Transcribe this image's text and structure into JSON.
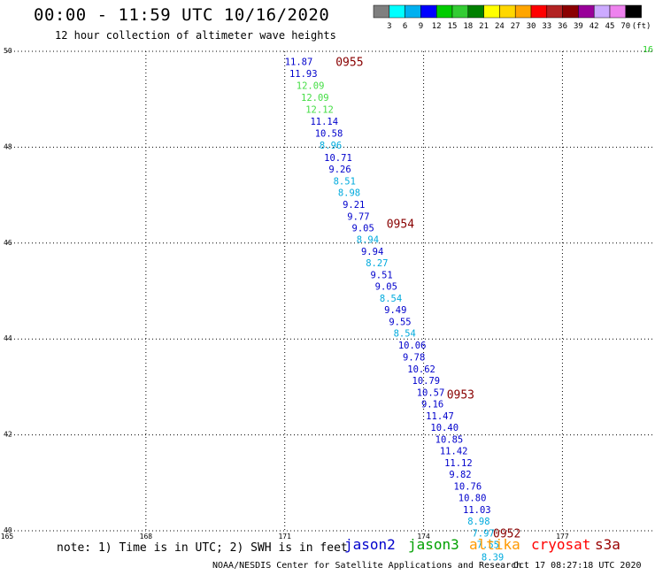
{
  "header": {
    "title": "00:00 - 11:59 UTC 10/16/2020",
    "subtitle": "12 hour collection of altimeter wave heights",
    "corner_label": "16"
  },
  "legend": {
    "colors": [
      "#7f7f7f",
      "#00ffff",
      "#00b0f0",
      "#0000ff",
      "#00cc00",
      "#33cc33",
      "#008000",
      "#ffff00",
      "#ffd700",
      "#ffa500",
      "#ff0000",
      "#b22222",
      "#8b0000",
      "#990099",
      "#ccaaff",
      "#ee82ee",
      "#000000"
    ],
    "labels": [
      "3",
      "6",
      "9",
      "12",
      "15",
      "18",
      "21",
      "24",
      "27",
      "30",
      "33",
      "36",
      "39",
      "42",
      "45",
      "70",
      "(ft)"
    ]
  },
  "footer": {
    "note": "note: 1) Time is in UTC; 2) SWH is in feet",
    "satellites": [
      {
        "name": "jason2",
        "color": "#0000cc"
      },
      {
        "name": "jason3",
        "color": "#00a000"
      },
      {
        "name": "altika",
        "color": "#ff9900"
      },
      {
        "name": "cryosat",
        "color": "#ff0000"
      },
      {
        "name": "s3a",
        "color": "#990000"
      }
    ],
    "credit": "NOAA/NESDIS Center for Satellite Applications and Research",
    "generated": "Oct 17 08:27:18 UTC 2020"
  },
  "chart_data": {
    "type": "scatter",
    "xlim": [
      165,
      179
    ],
    "ylim": [
      40,
      50
    ],
    "x_ticks": [
      165,
      168,
      171,
      174,
      177
    ],
    "y_ticks": [
      40,
      42,
      44,
      46,
      48,
      50
    ],
    "grid": true,
    "time_labels": [
      {
        "label": "0955",
        "x": 172.1,
        "y": 49.79
      },
      {
        "label": "0954",
        "x": 173.2,
        "y": 46.41
      },
      {
        "label": "0953",
        "x": 174.5,
        "y": 42.85
      },
      {
        "label": "0952",
        "x": 175.5,
        "y": 39.95
      }
    ],
    "points": [
      {
        "x": 171.0,
        "y": 49.79,
        "v": "11.87",
        "color": "#0000cc"
      },
      {
        "x": 171.1,
        "y": 49.54,
        "v": "11.93",
        "color": "#0000cc"
      },
      {
        "x": 171.25,
        "y": 49.29,
        "v": "12.09",
        "color": "#44dd44"
      },
      {
        "x": 171.35,
        "y": 49.04,
        "v": "12.09",
        "color": "#44dd44"
      },
      {
        "x": 171.45,
        "y": 48.79,
        "v": "12.12",
        "color": "#44dd44"
      },
      {
        "x": 171.55,
        "y": 48.54,
        "v": "11.14",
        "color": "#0000cc"
      },
      {
        "x": 171.65,
        "y": 48.29,
        "v": "10.58",
        "color": "#0000cc"
      },
      {
        "x": 171.75,
        "y": 48.04,
        "v": "8.96",
        "color": "#00aadd"
      },
      {
        "x": 171.85,
        "y": 47.79,
        "v": "10.71",
        "color": "#0000cc"
      },
      {
        "x": 171.95,
        "y": 47.55,
        "v": "9.26",
        "color": "#0000cc"
      },
      {
        "x": 172.05,
        "y": 47.3,
        "v": "8.51",
        "color": "#00aadd"
      },
      {
        "x": 172.15,
        "y": 47.06,
        "v": "8.98",
        "color": "#00aadd"
      },
      {
        "x": 172.25,
        "y": 46.81,
        "v": "9.21",
        "color": "#0000cc"
      },
      {
        "x": 172.35,
        "y": 46.56,
        "v": "9.77",
        "color": "#0000cc"
      },
      {
        "x": 172.45,
        "y": 46.32,
        "v": "9.05",
        "color": "#0000cc"
      },
      {
        "x": 172.55,
        "y": 46.08,
        "v": "8.94",
        "color": "#00aadd"
      },
      {
        "x": 172.65,
        "y": 45.83,
        "v": "9.94",
        "color": "#0000cc"
      },
      {
        "x": 172.75,
        "y": 45.59,
        "v": "8.27",
        "color": "#00aadd"
      },
      {
        "x": 172.85,
        "y": 45.34,
        "v": "9.51",
        "color": "#0000cc"
      },
      {
        "x": 172.95,
        "y": 45.1,
        "v": "9.05",
        "color": "#0000cc"
      },
      {
        "x": 173.05,
        "y": 44.85,
        "v": "8.54",
        "color": "#00aadd"
      },
      {
        "x": 173.15,
        "y": 44.61,
        "v": "9.49",
        "color": "#0000cc"
      },
      {
        "x": 173.25,
        "y": 44.36,
        "v": "9.55",
        "color": "#0000cc"
      },
      {
        "x": 173.35,
        "y": 44.12,
        "v": "8.54",
        "color": "#00aadd"
      },
      {
        "x": 173.45,
        "y": 43.87,
        "v": "10.06",
        "color": "#0000cc"
      },
      {
        "x": 173.55,
        "y": 43.63,
        "v": "9.78",
        "color": "#0000cc"
      },
      {
        "x": 173.65,
        "y": 43.38,
        "v": "10.62",
        "color": "#0000cc"
      },
      {
        "x": 173.75,
        "y": 43.14,
        "v": "10.79",
        "color": "#0000cc"
      },
      {
        "x": 173.85,
        "y": 42.89,
        "v": "10.57",
        "color": "#0000cc"
      },
      {
        "x": 173.95,
        "y": 42.65,
        "v": "9.16",
        "color": "#0000cc"
      },
      {
        "x": 174.05,
        "y": 42.4,
        "v": "11.47",
        "color": "#0000cc"
      },
      {
        "x": 174.15,
        "y": 42.16,
        "v": "10.40",
        "color": "#0000cc"
      },
      {
        "x": 174.25,
        "y": 41.91,
        "v": "10.85",
        "color": "#0000cc"
      },
      {
        "x": 174.35,
        "y": 41.67,
        "v": "11.42",
        "color": "#0000cc"
      },
      {
        "x": 174.45,
        "y": 41.42,
        "v": "11.12",
        "color": "#0000cc"
      },
      {
        "x": 174.55,
        "y": 41.18,
        "v": "9.82",
        "color": "#0000cc"
      },
      {
        "x": 174.65,
        "y": 40.93,
        "v": "10.76",
        "color": "#0000cc"
      },
      {
        "x": 174.75,
        "y": 40.69,
        "v": "10.80",
        "color": "#0000cc"
      },
      {
        "x": 174.85,
        "y": 40.44,
        "v": "11.03",
        "color": "#0000cc"
      },
      {
        "x": 174.95,
        "y": 40.2,
        "v": "8.98",
        "color": "#00aadd"
      },
      {
        "x": 175.05,
        "y": 39.95,
        "v": "7.97",
        "color": "#00aadd"
      },
      {
        "x": 175.15,
        "y": 39.71,
        "v": "7.55",
        "color": "#00aadd"
      },
      {
        "x": 175.25,
        "y": 39.46,
        "v": "8.39",
        "color": "#00aadd"
      }
    ]
  }
}
